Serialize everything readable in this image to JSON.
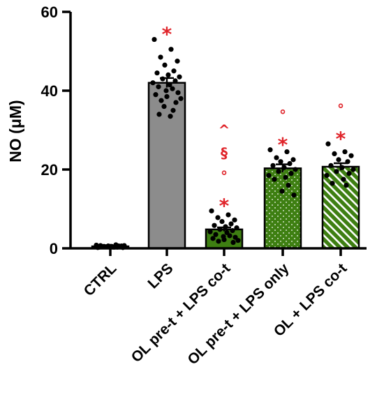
{
  "chart_data": {
    "type": "bar",
    "ylabel": "NO (μM)",
    "ylim": [
      0,
      60
    ],
    "yticks": [
      0,
      20,
      40,
      60
    ],
    "categories": [
      "CTRL",
      "LPS",
      "OL pre-t + LPS co-t",
      "OL pre-t + LPS only",
      "OL + LPS co-t"
    ],
    "values": [
      0.5,
      42,
      4.8,
      20.3,
      20.7
    ],
    "errors": [
      0.1,
      1.2,
      0.5,
      1.0,
      0.9
    ],
    "significance": [
      [],
      [
        "*"
      ],
      [
        "*",
        "°",
        "§",
        "^"
      ],
      [
        "*",
        "°"
      ],
      [
        "*",
        "°"
      ]
    ],
    "points": [
      [
        0.2,
        0.3,
        0.5,
        0.4,
        0.6,
        0.3,
        0.7,
        0.5,
        0.2,
        0.4,
        0.6,
        0.8,
        0.3,
        0.5,
        0.9,
        0.4,
        0.6,
        0.3,
        0.5,
        0.7
      ],
      [
        53,
        50.5,
        48.5,
        47.5,
        46.5,
        45,
        44.5,
        44,
        43.5,
        43,
        42.5,
        42,
        41.5,
        41,
        40.5,
        40,
        39.5,
        39,
        38.5,
        38,
        37.5,
        37,
        36,
        35,
        34,
        33.5
      ],
      [
        9.5,
        8.5,
        7.8,
        7.2,
        6.8,
        6.2,
        5.8,
        5.5,
        5.2,
        4.8,
        4.5,
        4.2,
        4.0,
        3.5,
        3.2,
        3.0,
        2.8,
        2.5,
        2.2,
        2.0,
        1.8,
        1.5
      ],
      [
        25,
        24.5,
        23,
        22.5,
        22,
        21.5,
        21,
        20.5,
        20,
        19.5,
        19,
        18.5,
        18,
        17.5,
        16,
        14.5,
        13.5
      ],
      [
        26.5,
        24.5,
        24,
        23.5,
        22.5,
        22,
        21,
        20.5,
        20,
        19.5,
        19,
        18.5,
        17.5,
        16.5,
        16
      ]
    ],
    "colors": {
      "ctrl": "#111111",
      "lps": "#8c8c8c",
      "ol": "#3e7f12",
      "marker": "#e0242a"
    },
    "patterns": [
      "solid",
      "solid",
      "solid",
      "dots",
      "stripes"
    ]
  }
}
